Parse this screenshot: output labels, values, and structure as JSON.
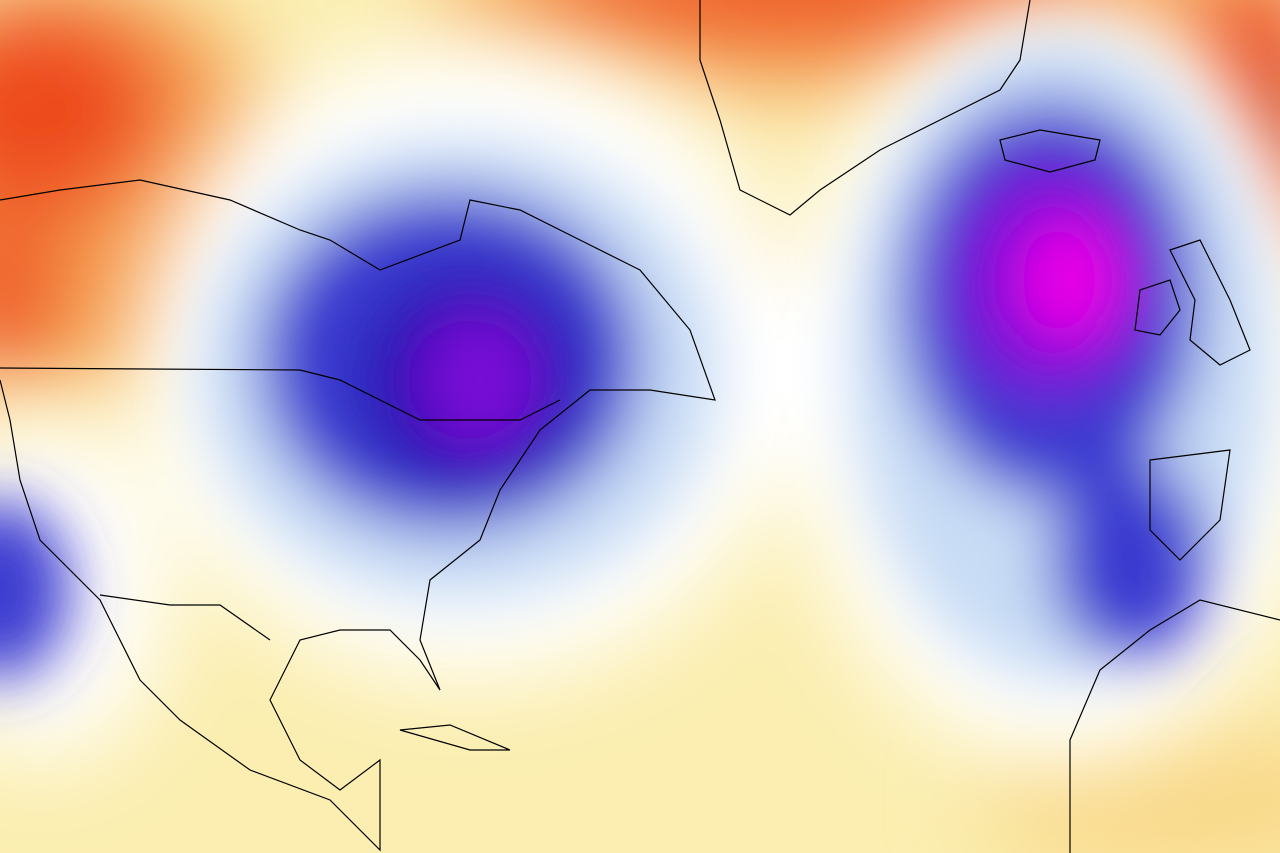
{
  "map": {
    "colors": {
      "background": "#fbeeb0",
      "warm_light": "#f9d98a",
      "warm": "#f5a050",
      "hot": "#ee4a1c",
      "very_hot": "#a51a0a",
      "neutral": "#ffffff",
      "cool_light": "#c8dcf5",
      "cool": "#3a3ad0",
      "cold": "#2010b0",
      "very_cold": "#7a10d8",
      "extreme_cold": "#f000e8",
      "coastline": "#000000"
    }
  }
}
